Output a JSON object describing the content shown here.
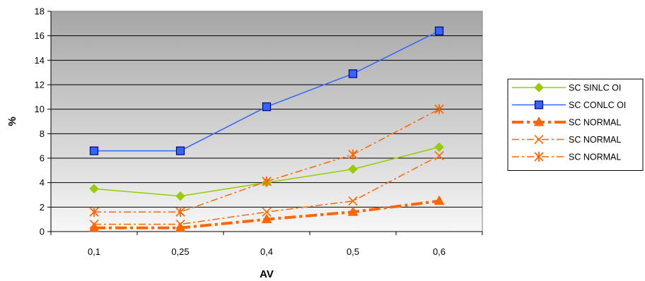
{
  "chart_data": {
    "type": "line",
    "title": "",
    "xlabel": "AV",
    "ylabel": "%",
    "categories": [
      "0,1",
      "0,25",
      "0,4",
      "0,5",
      "0,6"
    ],
    "ylim": [
      0,
      18
    ],
    "yticks": [
      "0",
      "2",
      "4",
      "6",
      "8",
      "10",
      "12",
      "14",
      "16",
      "18"
    ],
    "grid": "horizontal",
    "background": "vertical gray gradient",
    "legend_position": "right",
    "series": [
      {
        "name": "SC SINLC OI",
        "values": [
          3.5,
          2.9,
          4.0,
          5.1,
          6.9
        ],
        "color": "#99cc00",
        "marker": "diamond",
        "dash": "solid",
        "width": 1.5
      },
      {
        "name": "SC CONLC OI",
        "values": [
          6.6,
          6.6,
          10.2,
          12.9,
          16.4
        ],
        "color": "#3366ff",
        "marker": "square",
        "dash": "solid",
        "width": 1.5
      },
      {
        "name": "SC NORMAL",
        "values": [
          0.3,
          0.3,
          1.0,
          1.6,
          2.5
        ],
        "color": "#ff6600",
        "marker": "triangle",
        "dash": "dashdot",
        "width": 4
      },
      {
        "name": "SC NORMAL",
        "values": [
          0.6,
          0.6,
          1.6,
          2.5,
          6.2
        ],
        "color": "#ff6600",
        "marker": "x",
        "dash": "dashdot",
        "width": 1.5
      },
      {
        "name": "SC NORMAL",
        "values": [
          1.6,
          1.6,
          4.1,
          6.3,
          10.0
        ],
        "color": "#ff6600",
        "marker": "star",
        "dash": "dashdot",
        "width": 1.5
      }
    ]
  }
}
